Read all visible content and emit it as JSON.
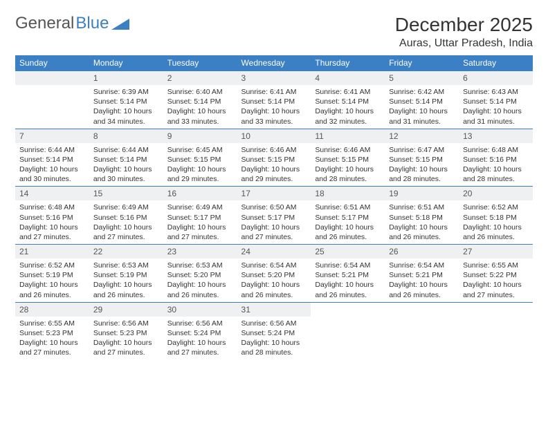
{
  "brand": {
    "part1": "General",
    "part2": "Blue"
  },
  "title": "December 2025",
  "location": "Auras, Uttar Pradesh, India",
  "colors": {
    "header_bg": "#3b7fc4",
    "header_text": "#ffffff",
    "daynum_bg": "#eef0f2",
    "border": "#3b7fc4",
    "text": "#333333",
    "background": "#ffffff"
  },
  "typography": {
    "title_fontsize": 28,
    "location_fontsize": 16,
    "header_fontsize": 12,
    "daynum_fontsize": 12,
    "body_fontsize": 10.5
  },
  "weekdays": [
    "Sunday",
    "Monday",
    "Tuesday",
    "Wednesday",
    "Thursday",
    "Friday",
    "Saturday"
  ],
  "first_weekday_index": 1,
  "days": [
    {
      "n": 1,
      "sr": "6:39 AM",
      "ss": "5:14 PM",
      "dl": "10 hours and 34 minutes."
    },
    {
      "n": 2,
      "sr": "6:40 AM",
      "ss": "5:14 PM",
      "dl": "10 hours and 33 minutes."
    },
    {
      "n": 3,
      "sr": "6:41 AM",
      "ss": "5:14 PM",
      "dl": "10 hours and 33 minutes."
    },
    {
      "n": 4,
      "sr": "6:41 AM",
      "ss": "5:14 PM",
      "dl": "10 hours and 32 minutes."
    },
    {
      "n": 5,
      "sr": "6:42 AM",
      "ss": "5:14 PM",
      "dl": "10 hours and 31 minutes."
    },
    {
      "n": 6,
      "sr": "6:43 AM",
      "ss": "5:14 PM",
      "dl": "10 hours and 31 minutes."
    },
    {
      "n": 7,
      "sr": "6:44 AM",
      "ss": "5:14 PM",
      "dl": "10 hours and 30 minutes."
    },
    {
      "n": 8,
      "sr": "6:44 AM",
      "ss": "5:14 PM",
      "dl": "10 hours and 30 minutes."
    },
    {
      "n": 9,
      "sr": "6:45 AM",
      "ss": "5:15 PM",
      "dl": "10 hours and 29 minutes."
    },
    {
      "n": 10,
      "sr": "6:46 AM",
      "ss": "5:15 PM",
      "dl": "10 hours and 29 minutes."
    },
    {
      "n": 11,
      "sr": "6:46 AM",
      "ss": "5:15 PM",
      "dl": "10 hours and 28 minutes."
    },
    {
      "n": 12,
      "sr": "6:47 AM",
      "ss": "5:15 PM",
      "dl": "10 hours and 28 minutes."
    },
    {
      "n": 13,
      "sr": "6:48 AM",
      "ss": "5:16 PM",
      "dl": "10 hours and 28 minutes."
    },
    {
      "n": 14,
      "sr": "6:48 AM",
      "ss": "5:16 PM",
      "dl": "10 hours and 27 minutes."
    },
    {
      "n": 15,
      "sr": "6:49 AM",
      "ss": "5:16 PM",
      "dl": "10 hours and 27 minutes."
    },
    {
      "n": 16,
      "sr": "6:49 AM",
      "ss": "5:17 PM",
      "dl": "10 hours and 27 minutes."
    },
    {
      "n": 17,
      "sr": "6:50 AM",
      "ss": "5:17 PM",
      "dl": "10 hours and 27 minutes."
    },
    {
      "n": 18,
      "sr": "6:51 AM",
      "ss": "5:17 PM",
      "dl": "10 hours and 26 minutes."
    },
    {
      "n": 19,
      "sr": "6:51 AM",
      "ss": "5:18 PM",
      "dl": "10 hours and 26 minutes."
    },
    {
      "n": 20,
      "sr": "6:52 AM",
      "ss": "5:18 PM",
      "dl": "10 hours and 26 minutes."
    },
    {
      "n": 21,
      "sr": "6:52 AM",
      "ss": "5:19 PM",
      "dl": "10 hours and 26 minutes."
    },
    {
      "n": 22,
      "sr": "6:53 AM",
      "ss": "5:19 PM",
      "dl": "10 hours and 26 minutes."
    },
    {
      "n": 23,
      "sr": "6:53 AM",
      "ss": "5:20 PM",
      "dl": "10 hours and 26 minutes."
    },
    {
      "n": 24,
      "sr": "6:54 AM",
      "ss": "5:20 PM",
      "dl": "10 hours and 26 minutes."
    },
    {
      "n": 25,
      "sr": "6:54 AM",
      "ss": "5:21 PM",
      "dl": "10 hours and 26 minutes."
    },
    {
      "n": 26,
      "sr": "6:54 AM",
      "ss": "5:21 PM",
      "dl": "10 hours and 26 minutes."
    },
    {
      "n": 27,
      "sr": "6:55 AM",
      "ss": "5:22 PM",
      "dl": "10 hours and 27 minutes."
    },
    {
      "n": 28,
      "sr": "6:55 AM",
      "ss": "5:23 PM",
      "dl": "10 hours and 27 minutes."
    },
    {
      "n": 29,
      "sr": "6:56 AM",
      "ss": "5:23 PM",
      "dl": "10 hours and 27 minutes."
    },
    {
      "n": 30,
      "sr": "6:56 AM",
      "ss": "5:24 PM",
      "dl": "10 hours and 27 minutes."
    },
    {
      "n": 31,
      "sr": "6:56 AM",
      "ss": "5:24 PM",
      "dl": "10 hours and 28 minutes."
    }
  ],
  "labels": {
    "sunrise": "Sunrise:",
    "sunset": "Sunset:",
    "daylight": "Daylight:"
  }
}
